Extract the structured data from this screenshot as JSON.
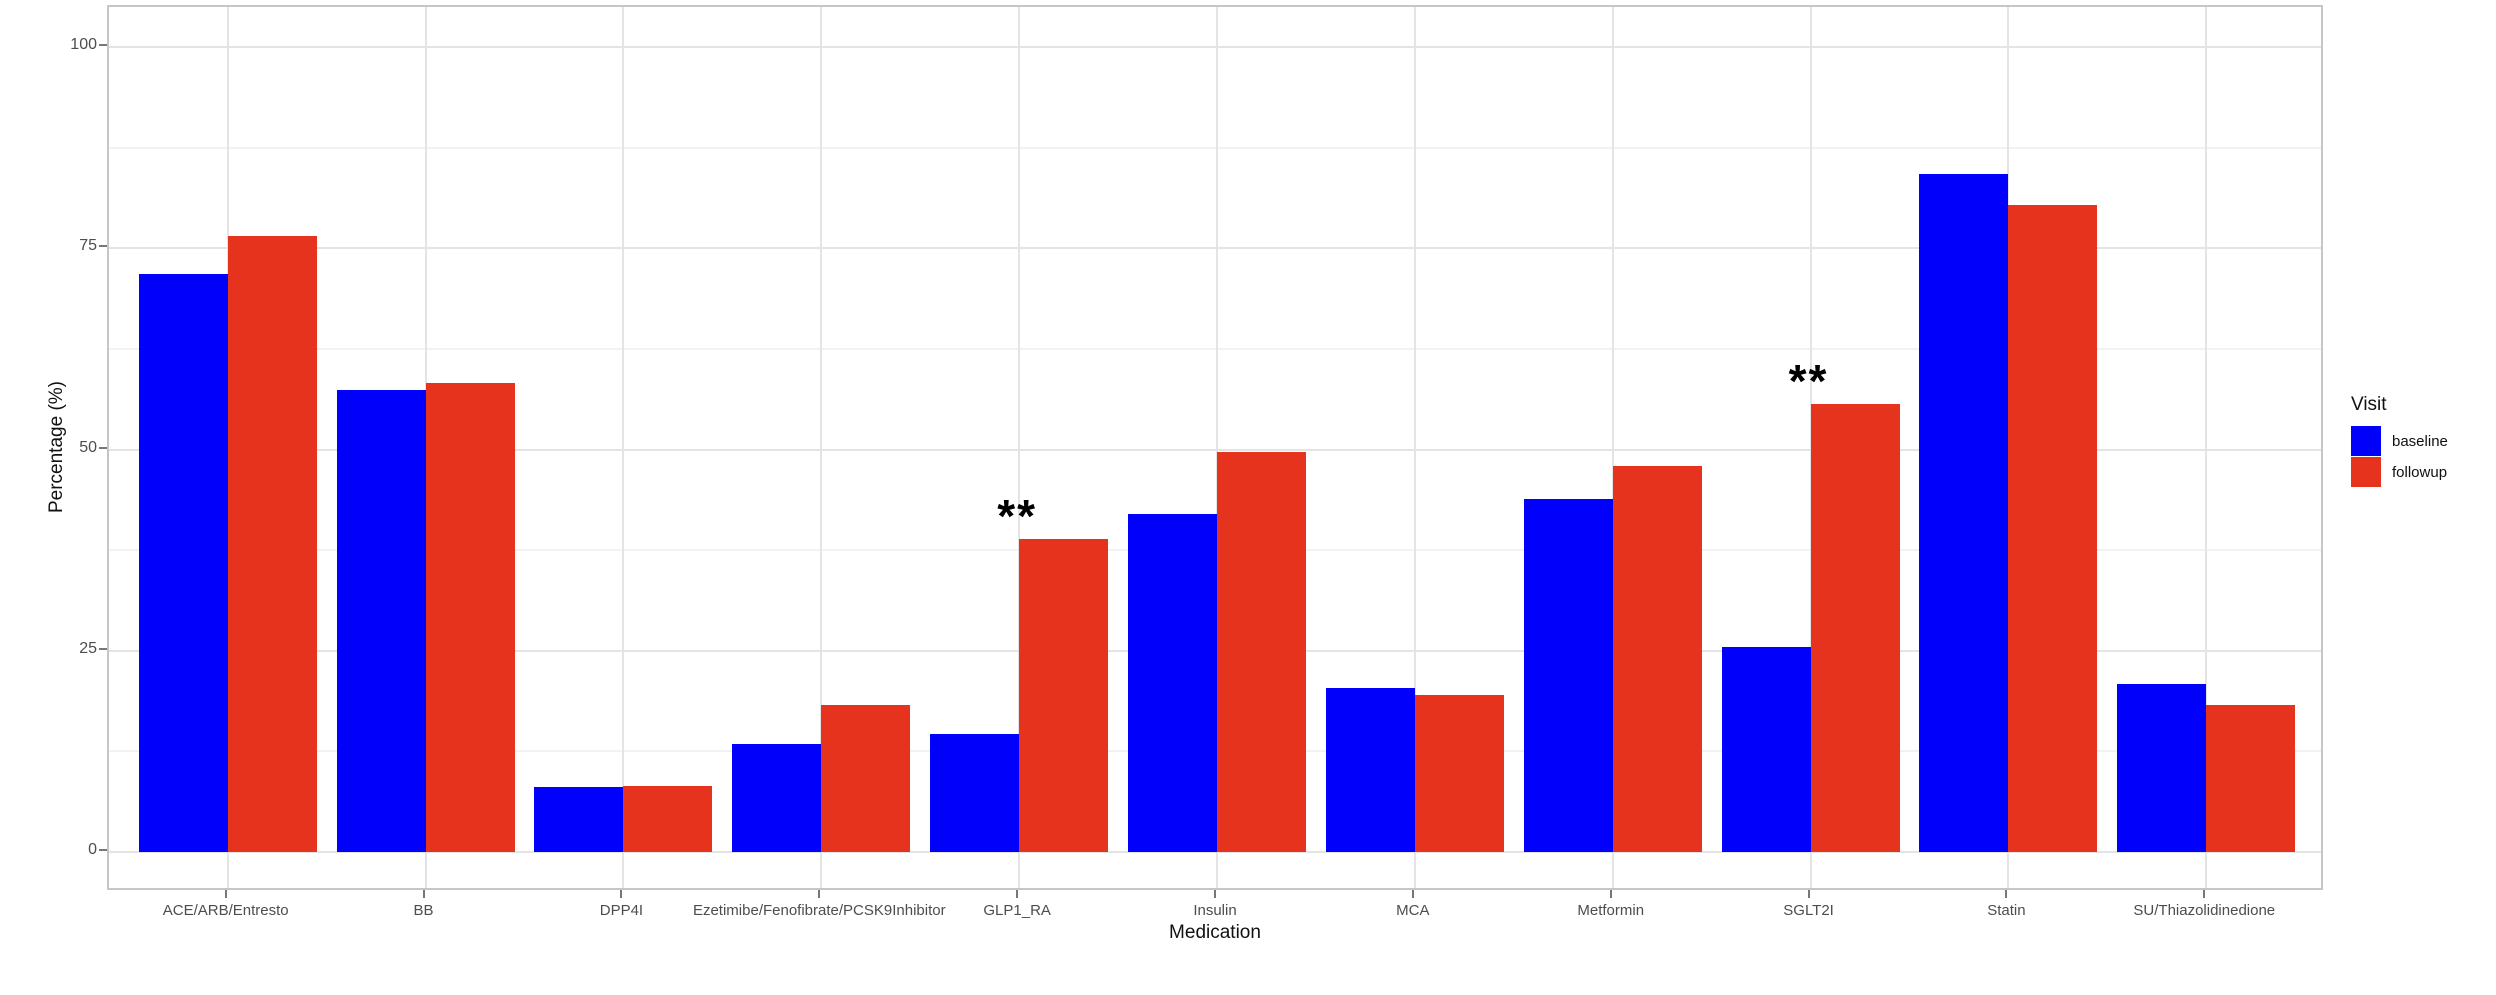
{
  "chart_data": {
    "type": "bar",
    "title": "",
    "xlabel": "Medication",
    "ylabel": "Percentage (%)",
    "categories": [
      "ACE/ARB/Entresto",
      "BB",
      "DPP4I",
      "Ezetimibe/Fenofibrate/PCSK9Inhibitor",
      "GLP1_RA",
      "Insulin",
      "MCA",
      "Metformin",
      "SGLT2I",
      "Statin",
      "SU/Thiazolidinedione"
    ],
    "series": [
      {
        "name": "baseline",
        "color": "#0000fb",
        "values": [
          71.8,
          57.4,
          8.0,
          13.4,
          14.6,
          42.0,
          20.4,
          43.9,
          25.4,
          84.3,
          20.9
        ]
      },
      {
        "name": "followup",
        "color": "#e6331e",
        "values": [
          76.5,
          58.3,
          8.2,
          18.2,
          38.9,
          49.7,
          19.5,
          47.9,
          55.7,
          80.4,
          18.2
        ]
      }
    ],
    "y_ticks": [
      0,
      25,
      50,
      75,
      100
    ],
    "ylim": [
      0,
      100
    ],
    "grid": "major+minor horizontal, major vertical at category centers",
    "legend_title": "Visit",
    "legend_position": "right",
    "annotations": [
      {
        "text": "**",
        "category": "GLP1_RA",
        "series": "followup"
      },
      {
        "text": "**",
        "category": "SGLT2I",
        "series": "followup"
      }
    ]
  }
}
